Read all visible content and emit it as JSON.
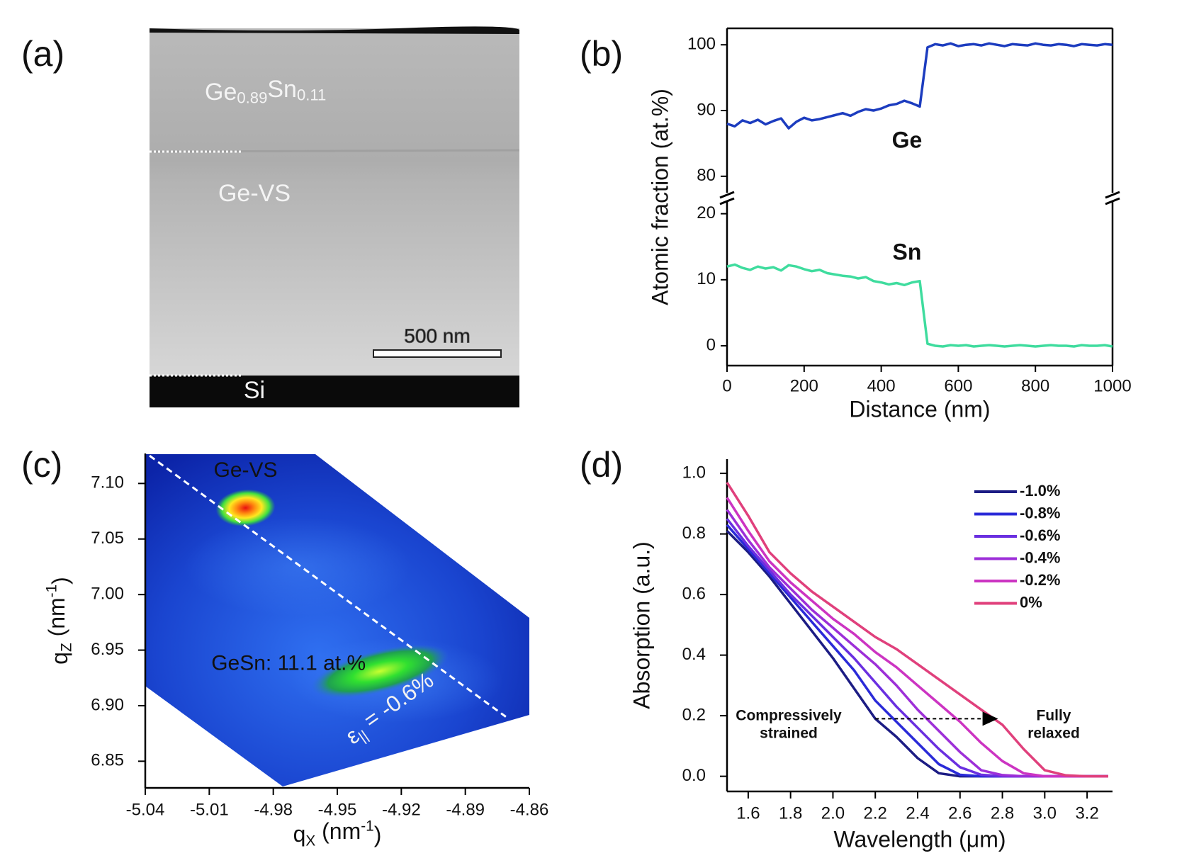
{
  "chart_data": [
    {
      "type": "micrograph",
      "panel_label": "(a)",
      "layers": [
        {
          "label": [
            {
              "text": "Ge"
            },
            {
              "text": "0.89",
              "sub": true
            },
            {
              "text": "Sn"
            },
            {
              "text": "0.11",
              "sub": true
            }
          ]
        },
        {
          "label": [
            {
              "text": "Ge-VS"
            }
          ]
        },
        {
          "label": [
            {
              "text": "Si"
            }
          ]
        }
      ],
      "scale_bar": "500 nm"
    },
    {
      "type": "line",
      "panel_label": "(b)",
      "x": [
        0,
        20,
        40,
        60,
        80,
        100,
        120,
        140,
        160,
        180,
        200,
        220,
        240,
        260,
        280,
        300,
        320,
        340,
        360,
        380,
        400,
        420,
        440,
        460,
        480,
        500,
        520,
        540,
        560,
        580,
        600,
        620,
        640,
        660,
        680,
        700,
        720,
        740,
        760,
        780,
        800,
        820,
        840,
        860,
        880,
        900,
        920,
        940,
        960,
        980,
        1000
      ],
      "xlim": [
        0,
        1000
      ],
      "xticks": [
        0,
        200,
        400,
        600,
        800,
        1000
      ],
      "xlabel": "Distance (nm)",
      "ylabel": "Atomic fraction (at.%)",
      "ylims": [
        [
          -3,
          22
        ],
        [
          77.5,
          102.5
        ]
      ],
      "yticks": [
        0,
        10,
        20,
        80,
        90,
        100
      ],
      "series": [
        {
          "name": "Ge",
          "color": "#1c3cbf",
          "values": [
            88.0,
            87.6,
            88.5,
            88.1,
            88.6,
            87.9,
            88.4,
            88.8,
            87.3,
            88.3,
            88.9,
            88.5,
            88.7,
            89.0,
            89.3,
            89.6,
            89.2,
            89.8,
            90.2,
            90.0,
            90.3,
            90.8,
            91.0,
            91.5,
            91.1,
            90.6,
            99.6,
            100.1,
            99.9,
            100.2,
            99.8,
            100.0,
            100.1,
            99.9,
            100.2,
            100.0,
            99.8,
            100.1,
            100.0,
            99.9,
            100.2,
            100.0,
            99.9,
            100.1,
            100.0,
            99.8,
            100.1,
            100.0,
            99.9,
            100.1,
            100.0
          ]
        },
        {
          "name": "Sn",
          "color": "#3fdc9e",
          "values": [
            12.0,
            12.3,
            11.8,
            11.5,
            12.0,
            11.7,
            11.9,
            11.4,
            12.2,
            12.0,
            11.6,
            11.3,
            11.5,
            11.0,
            10.8,
            10.6,
            10.5,
            10.2,
            10.4,
            9.8,
            9.6,
            9.3,
            9.5,
            9.2,
            9.6,
            9.8,
            0.3,
            0.0,
            -0.1,
            0.1,
            0.0,
            0.1,
            -0.1,
            0.0,
            0.1,
            0.0,
            -0.1,
            0.0,
            0.1,
            0.0,
            -0.1,
            0.0,
            0.1,
            0.0,
            0.0,
            -0.1,
            0.1,
            0.0,
            0.0,
            0.1,
            -0.1
          ]
        }
      ]
    },
    {
      "type": "heatmap",
      "panel_label": "(c)",
      "xlim": [
        -5.04,
        -4.86
      ],
      "xticks": [
        -5.04,
        -5.01,
        -4.98,
        -4.95,
        -4.92,
        -4.89,
        -4.86
      ],
      "ylim": [
        6.826,
        7.127
      ],
      "yticks": [
        6.85,
        {
          "value": 6.9,
          "label": "6.90"
        },
        6.95,
        {
          "value": 7,
          "label": "7.00"
        },
        7.05,
        {
          "value": 7.1,
          "label": "7.10"
        }
      ],
      "xlabel": [
        {
          "text": "q"
        },
        {
          "text": "X",
          "sub": true
        },
        {
          "text": " (nm"
        },
        {
          "text": "-1",
          "sup": true
        },
        {
          "text": ")"
        }
      ],
      "ylabel": [
        {
          "text": "q"
        },
        {
          "text": "Z",
          "sub": true
        },
        {
          "text": " (nm"
        },
        {
          "text": "-1",
          "sup": true
        },
        {
          "text": ")"
        }
      ],
      "peaks": [
        {
          "name": "Ge-VS",
          "x": -4.993,
          "y": 7.078
        },
        {
          "name": "GeSn: 11.1 at.%",
          "x": -4.93,
          "y": 6.931
        }
      ],
      "relaxation_line": {
        "x": [
          -5.038,
          -4.871
        ],
        "y": [
          7.125,
          6.89
        ],
        "label": [
          {
            "text": "ε"
          },
          {
            "text": "||",
            "sub": true
          },
          {
            "text": " = -0.6%"
          }
        ]
      }
    },
    {
      "type": "line",
      "panel_label": "(d)",
      "x": [
        1.5,
        1.6,
        1.7,
        1.8,
        1.9,
        2.0,
        2.1,
        2.2,
        2.3,
        2.4,
        2.5,
        2.6,
        2.7,
        2.8,
        2.9,
        3.0,
        3.1,
        3.2,
        3.3
      ],
      "xlim": [
        1.5,
        3.32
      ],
      "xticks": [
        1.6,
        1.8,
        {
          "value": 2,
          "label": "2.0"
        },
        2.2,
        2.4,
        2.6,
        2.8,
        {
          "value": 3,
          "label": "3.0"
        },
        3.2
      ],
      "ylim": [
        -0.05,
        1.047
      ],
      "yticks": [
        {
          "value": 0,
          "label": "0.0"
        },
        0.2,
        0.4,
        0.6,
        0.8,
        {
          "value": 1,
          "label": "1.0"
        }
      ],
      "xlabel": "Wavelength (μm)",
      "ylabel": "Absorption (a.u.)",
      "legend": "upper right",
      "series": [
        {
          "name": "-1.0%",
          "color": "#1c1c84",
          "values": [
            0.81,
            0.74,
            0.66,
            0.57,
            0.48,
            0.39,
            0.29,
            0.19,
            0.13,
            0.06,
            0.01,
            0,
            0,
            0,
            0,
            0,
            0,
            0,
            0
          ]
        },
        {
          "name": "-0.8%",
          "color": "#2a2ad8",
          "values": [
            0.83,
            0.75,
            0.67,
            0.59,
            0.51,
            0.43,
            0.35,
            0.25,
            0.18,
            0.11,
            0.04,
            0.005,
            0,
            0,
            0,
            0,
            0,
            0,
            0
          ]
        },
        {
          "name": "-0.6%",
          "color": "#6a2fe0",
          "values": [
            0.85,
            0.76,
            0.68,
            0.6,
            0.53,
            0.46,
            0.39,
            0.31,
            0.23,
            0.16,
            0.09,
            0.03,
            0.005,
            0,
            0,
            0,
            0,
            0,
            0
          ]
        },
        {
          "name": "-0.4%",
          "color": "#9d2fd8",
          "values": [
            0.88,
            0.78,
            0.69,
            0.62,
            0.55,
            0.49,
            0.43,
            0.37,
            0.3,
            0.22,
            0.15,
            0.08,
            0.02,
            0.004,
            0,
            0,
            0,
            0,
            0
          ]
        },
        {
          "name": "-0.2%",
          "color": "#cc34c2",
          "values": [
            0.92,
            0.81,
            0.71,
            0.64,
            0.58,
            0.52,
            0.47,
            0.41,
            0.36,
            0.3,
            0.24,
            0.18,
            0.11,
            0.05,
            0.01,
            0,
            0,
            0,
            0
          ]
        },
        {
          "name": "0%",
          "color": "#e0407c",
          "values": [
            0.97,
            0.86,
            0.74,
            0.67,
            0.61,
            0.56,
            0.51,
            0.46,
            0.42,
            0.37,
            0.32,
            0.27,
            0.22,
            0.17,
            0.09,
            0.02,
            0.003,
            0,
            0
          ]
        }
      ],
      "annotations": [
        {
          "lines": [
            "Compressively",
            "strained"
          ],
          "color": "#2222a0"
        },
        {
          "lines": [
            "Fully",
            "relaxed"
          ],
          "color": "#e0407c"
        }
      ],
      "arrow": {
        "x": [
          2.2,
          2.78
        ],
        "y": 0.19
      }
    }
  ]
}
